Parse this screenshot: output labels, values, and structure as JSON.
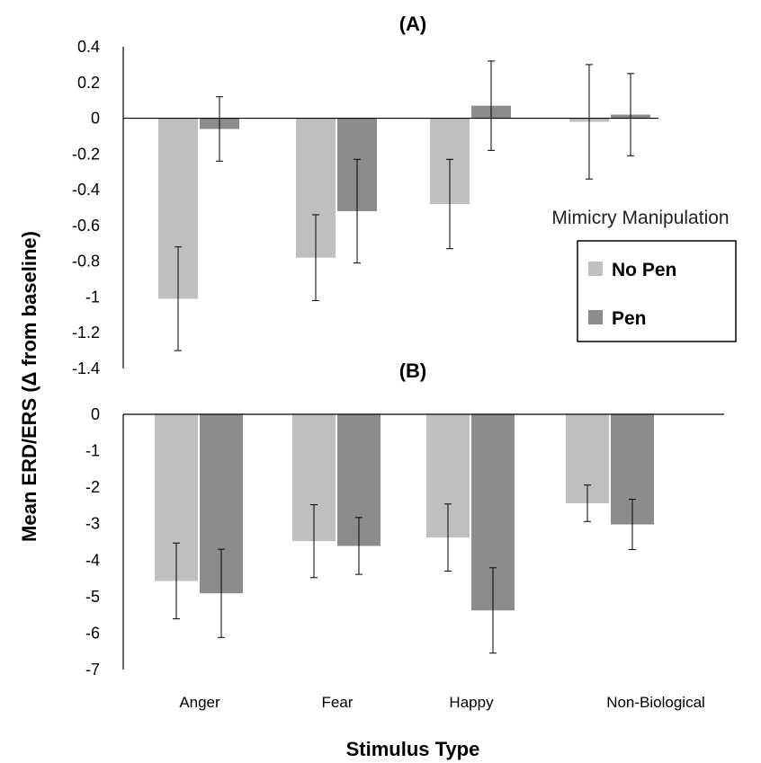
{
  "chart_data": [
    {
      "type": "bar",
      "title": "(A)",
      "categories": [
        "Anger",
        "Fear",
        "Happy",
        "Non-Biological"
      ],
      "ylim": [
        -1.4,
        0.4
      ],
      "yticks": [
        "0.4",
        "0.2",
        "0",
        "-0.2",
        "-0.4",
        "-0.6",
        "-0.8",
        "-1",
        "-1.2",
        "-1.4"
      ],
      "series": [
        {
          "name": "No Pen",
          "color": "#bfbfbf",
          "values": [
            -1.01,
            -0.78,
            -0.48,
            -0.02
          ],
          "errors": [
            0.29,
            0.24,
            0.25,
            0.32
          ]
        },
        {
          "name": "Pen",
          "color": "#8c8c8c",
          "values": [
            -0.06,
            -0.52,
            0.07,
            0.02
          ],
          "errors": [
            0.18,
            0.29,
            0.25,
            0.23
          ]
        }
      ]
    },
    {
      "type": "bar",
      "title": "(B)",
      "categories": [
        "Anger",
        "Fear",
        "Happy",
        "Non-Biological"
      ],
      "ylim": [
        -7,
        0
      ],
      "yticks": [
        "0",
        "-1",
        "-2",
        "-3",
        "-4",
        "-5",
        "-6",
        "-7"
      ],
      "series": [
        {
          "name": "No Pen",
          "color": "#bfbfbf",
          "values": [
            -4.57,
            -3.48,
            -3.38,
            -2.44
          ],
          "errors": [
            1.04,
            1.0,
            0.92,
            0.5
          ]
        },
        {
          "name": "Pen",
          "color": "#8c8c8c",
          "values": [
            -4.91,
            -3.61,
            -5.38,
            -3.02
          ],
          "errors": [
            1.21,
            0.78,
            1.17,
            0.69
          ]
        }
      ]
    }
  ],
  "ylabel": "Mean ERD/ERS (Δ from baseline)",
  "xlabel": "Stimulus Type",
  "legend": {
    "title": "Mimicry Manipulation",
    "items": [
      "No Pen",
      "Pen"
    ],
    "placement": "right"
  }
}
